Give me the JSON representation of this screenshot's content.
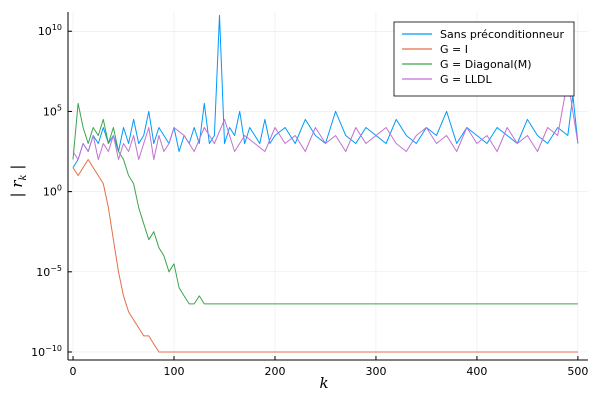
{
  "chart_data": {
    "type": "line",
    "title": "",
    "xlabel": "k",
    "ylabel": "| r_k |",
    "xlim": [
      -5,
      510
    ],
    "ylim_log10": [
      -10.5,
      11.2
    ],
    "yscale": "log",
    "grid": true,
    "legend_position": "top-right",
    "x_ticks": [
      {
        "value": 0,
        "label": "0"
      },
      {
        "value": 100,
        "label": "100"
      },
      {
        "value": 200,
        "label": "200"
      },
      {
        "value": 300,
        "label": "300"
      },
      {
        "value": 400,
        "label": "400"
      },
      {
        "value": 500,
        "label": "500"
      }
    ],
    "y_ticks": [
      {
        "exp": 10,
        "base": "10",
        "sup": "10"
      },
      {
        "exp": 5,
        "base": "10",
        "sup": "5"
      },
      {
        "exp": 0,
        "base": "10",
        "sup": "0"
      },
      {
        "exp": -5,
        "base": "10",
        "sup": "−5"
      },
      {
        "exp": -10,
        "base": "10",
        "sup": "−10"
      }
    ],
    "series": [
      {
        "name": "Sans préconditionneur",
        "color": "#009AFA",
        "x": [
          0,
          5,
          10,
          15,
          20,
          25,
          30,
          35,
          40,
          45,
          50,
          55,
          60,
          65,
          70,
          75,
          80,
          85,
          90,
          95,
          100,
          105,
          110,
          115,
          120,
          125,
          130,
          135,
          140,
          145,
          150,
          155,
          160,
          165,
          170,
          175,
          180,
          185,
          190,
          195,
          200,
          210,
          220,
          230,
          240,
          250,
          260,
          270,
          280,
          290,
          300,
          310,
          320,
          330,
          340,
          350,
          360,
          370,
          380,
          390,
          400,
          410,
          420,
          430,
          440,
          450,
          460,
          470,
          480,
          490,
          495,
          500
        ],
        "log10_y": [
          1.5,
          2,
          3,
          2.5,
          3.5,
          3,
          4,
          3,
          3.5,
          2.5,
          4,
          3,
          4.5,
          3,
          3.5,
          5,
          3,
          4,
          3.5,
          3,
          4,
          2.5,
          3.5,
          3,
          4,
          3,
          5.5,
          3,
          3.5,
          11,
          3,
          4,
          3.5,
          5,
          3,
          4,
          3.5,
          3,
          4.5,
          3,
          3.5,
          4,
          3,
          4.5,
          3.5,
          3,
          5,
          3.5,
          3,
          4,
          3.5,
          3,
          4.5,
          3.5,
          3,
          4,
          3.5,
          5,
          3,
          4,
          3.5,
          3,
          4,
          3.5,
          3,
          4.5,
          3.5,
          3,
          4,
          3.5,
          6,
          3
        ]
      },
      {
        "name": "G = I",
        "color": "#E26F46",
        "x": [
          0,
          5,
          10,
          15,
          20,
          25,
          30,
          35,
          40,
          45,
          50,
          55,
          60,
          65,
          70,
          75,
          80,
          85,
          90,
          95,
          100,
          200,
          300,
          400,
          500
        ],
        "log10_y": [
          1.5,
          1,
          1.5,
          2,
          1.5,
          1,
          0.5,
          -1,
          -3,
          -5,
          -6.5,
          -7.5,
          -8,
          -8.5,
          -9,
          -9,
          -9.5,
          -10,
          -10,
          -10,
          -10,
          -10,
          -10,
          -10,
          -10
        ]
      },
      {
        "name": "G = Diagonal(M)",
        "color": "#3DA44D",
        "x": [
          0,
          5,
          10,
          15,
          20,
          25,
          30,
          35,
          40,
          45,
          50,
          55,
          60,
          65,
          70,
          75,
          80,
          85,
          90,
          95,
          100,
          105,
          110,
          115,
          120,
          125,
          130,
          135,
          140,
          200,
          300,
          400,
          500
        ],
        "log10_y": [
          2,
          5.5,
          4,
          3,
          4,
          3.5,
          4.5,
          3,
          4,
          2.5,
          2,
          1,
          0.5,
          -1,
          -2,
          -3,
          -2.5,
          -3.5,
          -4,
          -5,
          -4.5,
          -6,
          -6.5,
          -7,
          -7,
          -6.5,
          -7,
          -7,
          -7,
          -7,
          -7,
          -7,
          -7
        ]
      },
      {
        "name": "G = LLDL",
        "color": "#C271D2",
        "x": [
          0,
          5,
          10,
          15,
          20,
          25,
          30,
          35,
          40,
          45,
          50,
          55,
          60,
          65,
          70,
          75,
          80,
          85,
          90,
          95,
          100,
          110,
          120,
          130,
          140,
          150,
          160,
          170,
          180,
          190,
          200,
          210,
          220,
          230,
          240,
          250,
          260,
          270,
          280,
          290,
          300,
          310,
          320,
          330,
          340,
          350,
          360,
          370,
          380,
          390,
          400,
          410,
          420,
          430,
          440,
          450,
          460,
          470,
          480,
          490,
          500
        ],
        "log10_y": [
          2.5,
          2,
          3,
          2.5,
          3.5,
          2,
          3,
          2.5,
          3.5,
          2,
          3,
          2.5,
          3.5,
          2,
          3,
          4,
          2,
          3.5,
          2.5,
          3,
          4,
          3.5,
          2.5,
          4,
          3,
          4.5,
          2.5,
          3.5,
          3,
          2.5,
          4,
          3,
          3.5,
          2.5,
          4,
          3,
          3.5,
          2.5,
          4,
          3,
          3.5,
          4,
          3,
          2.5,
          3.5,
          4,
          3,
          3.5,
          2.5,
          4,
          3,
          3.5,
          2.5,
          4,
          3,
          3.5,
          2.5,
          4,
          3.5,
          7,
          3
        ]
      }
    ]
  }
}
